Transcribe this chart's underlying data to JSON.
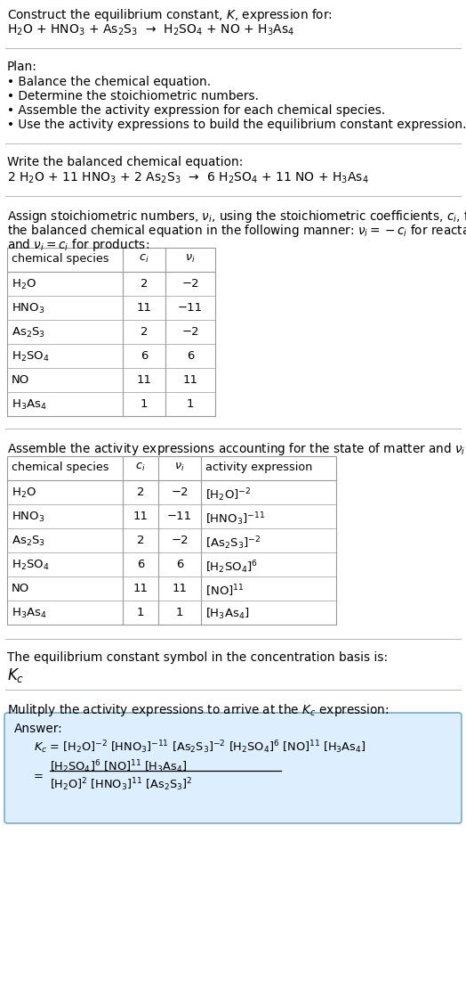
{
  "bg_color": "#ffffff",
  "text_color": "#000000",
  "separator_color": "#bbbbbb",
  "answer_box_color": "#ddeeff",
  "answer_box_border": "#7aadcc",
  "table_border_color": "#999999",
  "section1_line1": "Construct the equilibrium constant, $K$, expression for:",
  "section1_line2_plain": "H$_2$O + HNO$_3$ + As$_2$S$_3$  →  H$_2$SO$_4$ + NO + H$_3$As$_4$",
  "plan_header": "Plan:",
  "plan_items": [
    "• Balance the chemical equation.",
    "• Determine the stoichiometric numbers.",
    "• Assemble the activity expression for each chemical species.",
    "• Use the activity expressions to build the equilibrium constant expression."
  ],
  "balanced_header": "Write the balanced chemical equation:",
  "balanced_eq": "2 H$_2$O + 11 HNO$_3$ + 2 As$_2$S$_3$  →  6 H$_2$SO$_4$ + 11 NO + H$_3$As$_4$",
  "stoich_text1": "Assign stoichiometric numbers, $\\nu_i$, using the stoichiometric coefficients, $c_i$, from",
  "stoich_text2": "the balanced chemical equation in the following manner: $\\nu_i = -c_i$ for reactants",
  "stoich_text3": "and $\\nu_i = c_i$ for products:",
  "table1_col_headers": [
    "chemical species",
    "$c_i$",
    "$\\nu_i$"
  ],
  "table1_rows": [
    [
      "H$_2$O",
      "2",
      "−2"
    ],
    [
      "HNO$_3$",
      "11",
      "−11"
    ],
    [
      "As$_2$S$_3$",
      "2",
      "−2"
    ],
    [
      "H$_2$SO$_4$",
      "6",
      "6"
    ],
    [
      "NO",
      "11",
      "11"
    ],
    [
      "H$_3$As$_4$",
      "1",
      "1"
    ]
  ],
  "activity_header": "Assemble the activity expressions accounting for the state of matter and $\\nu_i$:",
  "table2_col_headers": [
    "chemical species",
    "$c_i$",
    "$\\nu_i$",
    "activity expression"
  ],
  "table2_rows": [
    [
      "H$_2$O",
      "2",
      "−2",
      "[H$_2$O]$^{-2}$"
    ],
    [
      "HNO$_3$",
      "11",
      "−11",
      "[HNO$_3$]$^{-11}$"
    ],
    [
      "As$_2$S$_3$",
      "2",
      "−2",
      "[As$_2$S$_3$]$^{-2}$"
    ],
    [
      "H$_2$SO$_4$",
      "6",
      "6",
      "[H$_2$SO$_4$]$^{6}$"
    ],
    [
      "NO",
      "11",
      "11",
      "[NO]$^{11}$"
    ],
    [
      "H$_3$As$_4$",
      "1",
      "1",
      "[H$_3$As$_4$]"
    ]
  ],
  "kc_header": "The equilibrium constant symbol in the concentration basis is:",
  "kc_symbol": "$K_c$",
  "multiply_header": "Mulitply the activity expressions to arrive at the $K_c$ expression:",
  "answer_label": "Answer:",
  "answer_kc_line": "$K_c$ = [H$_2$O]$^{-2}$ [HNO$_3$]$^{-11}$ [As$_2$S$_3$]$^{-2}$ [H$_2$SO$_4$]$^{6}$ [NO]$^{11}$ [H$_3$As$_4$]",
  "answer_eq_line1_num": "[H$_2$SO$_4$]$^{6}$ [NO]$^{11}$ [H$_3$As$_4$]",
  "answer_eq_line1_den": "[H$_2$O]$^{2}$ [HNO$_3$]$^{11}$ [As$_2$S$_3$]$^{2}$"
}
